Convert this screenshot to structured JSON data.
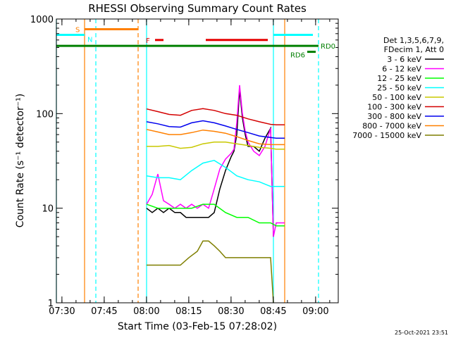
{
  "chart_data": {
    "type": "line",
    "title": "RHESSI Observing Summary Count Rates",
    "xlabel": "Start Time (03-Feb-15 07:28:02)",
    "ylabel": "Count Rate (s⁻¹ detector⁻¹)",
    "x_unit": "minutes since 07:28:02",
    "xlim": [
      0,
      100
    ],
    "ylim": [
      1,
      1000
    ],
    "yscale": "log",
    "grid": false,
    "legend_position": "right",
    "xticks": [
      {
        "value": 1.97,
        "label": "07:30"
      },
      {
        "value": 16.97,
        "label": "07:45"
      },
      {
        "value": 31.97,
        "label": "08:00"
      },
      {
        "value": 46.97,
        "label": "08:15"
      },
      {
        "value": 61.97,
        "label": "08:30"
      },
      {
        "value": 76.97,
        "label": "08:45"
      },
      {
        "value": 91.97,
        "label": "09:00"
      }
    ],
    "yticks": [
      {
        "value": 1,
        "label": "1"
      },
      {
        "value": 10,
        "label": "10"
      },
      {
        "value": 100,
        "label": "100"
      },
      {
        "value": 1000,
        "label": "1000"
      }
    ],
    "legend_header": [
      "Det 1,3,5,6,7,9,",
      "FDecim 1, Att 0"
    ],
    "series": [
      {
        "name": "3 - 6 keV",
        "color": "#000000",
        "x": [
          32,
          34,
          36,
          38,
          40,
          42,
          44,
          46,
          48,
          50,
          52,
          54,
          56,
          58,
          60,
          62,
          63,
          64,
          65,
          66,
          67,
          68,
          70,
          72,
          74,
          76,
          77
        ],
        "y": [
          10,
          9,
          10,
          9,
          10,
          9,
          9,
          8,
          8,
          8,
          8,
          8,
          9,
          16,
          25,
          35,
          40,
          60,
          180,
          90,
          60,
          45,
          45,
          40,
          55,
          70,
          5
        ]
      },
      {
        "name": "6 - 12 keV",
        "color": "#ff00ff",
        "x": [
          32,
          34,
          36,
          38,
          40,
          42,
          44,
          46,
          48,
          50,
          52,
          54,
          56,
          58,
          60,
          62,
          63,
          64,
          65,
          66,
          67,
          68,
          70,
          72,
          74,
          76,
          77,
          78,
          81
        ],
        "y": [
          11,
          14,
          23,
          12,
          11,
          10,
          11,
          10,
          11,
          10,
          11,
          10,
          16,
          26,
          33,
          38,
          42,
          80,
          200,
          100,
          65,
          50,
          40,
          36,
          45,
          70,
          5,
          7,
          7
        ]
      },
      {
        "name": "12 - 25 keV",
        "color": "#00ff00",
        "x": [
          32,
          36,
          40,
          44,
          48,
          52,
          56,
          60,
          64,
          68,
          72,
          76,
          78,
          81
        ],
        "y": [
          11,
          10,
          10,
          10,
          10,
          11,
          11,
          9,
          8,
          8,
          7,
          7,
          6.5,
          6.5
        ]
      },
      {
        "name": "25 - 50 keV",
        "color": "#00ffff",
        "x": [
          32,
          36,
          40,
          44,
          48,
          52,
          56,
          60,
          64,
          68,
          72,
          76,
          78,
          81
        ],
        "y": [
          22,
          21,
          21,
          20,
          25,
          30,
          32,
          27,
          22,
          20,
          19,
          17,
          17,
          17
        ]
      },
      {
        "name": "50 - 100 keV",
        "color": "#c8c800",
        "x": [
          32,
          36,
          40,
          44,
          48,
          52,
          56,
          60,
          64,
          68,
          72,
          76,
          78,
          81
        ],
        "y": [
          45,
          45,
          46,
          43,
          44,
          48,
          50,
          50,
          48,
          46,
          44,
          43,
          42,
          42
        ]
      },
      {
        "name": "100 - 300 keV",
        "color": "#d40000",
        "x": [
          32,
          36,
          40,
          44,
          48,
          52,
          56,
          60,
          64,
          68,
          72,
          76,
          78,
          81
        ],
        "y": [
          112,
          105,
          98,
          96,
          108,
          113,
          108,
          100,
          96,
          88,
          82,
          77,
          76,
          76
        ]
      },
      {
        "name": "300 - 800 keV",
        "color": "#0000ee",
        "x": [
          32,
          36,
          40,
          44,
          48,
          52,
          56,
          60,
          64,
          68,
          72,
          76,
          78,
          81
        ],
        "y": [
          82,
          78,
          73,
          72,
          80,
          84,
          80,
          74,
          68,
          63,
          58,
          56,
          55,
          55
        ]
      },
      {
        "name": "800 - 7000 keV",
        "color": "#ff8000",
        "x": [
          32,
          36,
          40,
          44,
          48,
          52,
          56,
          60,
          64,
          68,
          72,
          76,
          78,
          81
        ],
        "y": [
          68,
          64,
          60,
          60,
          63,
          67,
          65,
          62,
          57,
          52,
          48,
          47,
          47,
          47
        ]
      },
      {
        "name": "7000 - 15000 keV",
        "color": "#7f7f00",
        "x": [
          32,
          36,
          40,
          44,
          47,
          50,
          52,
          54,
          56,
          58,
          60,
          64,
          68,
          72,
          76,
          77
        ],
        "y": [
          2.5,
          2.5,
          2.5,
          2.5,
          3,
          3.5,
          4.5,
          4.5,
          4,
          3.5,
          3,
          3,
          3,
          3,
          3,
          1
        ]
      }
    ],
    "flags": [
      {
        "label": "S",
        "color": "#ff8000",
        "x": [
          10,
          29
        ],
        "y": 780
      },
      {
        "label": "N",
        "color": "#00ffff",
        "x": [
          0,
          10
        ],
        "y": 680
      },
      {
        "label": "F",
        "color": "#e60000",
        "x": [
          35,
          38
        ],
        "y": 600
      },
      {
        "label": "",
        "color": "#e60000",
        "x": [
          53,
          75
        ],
        "y": 600
      },
      {
        "label": "",
        "color": "#00ffff",
        "x": [
          77,
          91
        ],
        "y": 680
      },
      {
        "label": "RD0",
        "color": "#007f00",
        "x": [
          0,
          93
        ],
        "y": 520
      },
      {
        "label": "RD6",
        "color": "#007f00",
        "x": [
          89,
          92
        ],
        "y": 450
      }
    ],
    "vertical_markers": [
      {
        "x": 0,
        "color": "#00ffff",
        "style": "solid"
      },
      {
        "x": 10,
        "color": "#ff8000",
        "style": "solid"
      },
      {
        "x": 14,
        "color": "#00ffff",
        "style": "dashed"
      },
      {
        "x": 29,
        "color": "#ff8000",
        "style": "dashed"
      },
      {
        "x": 32,
        "color": "#00ffff",
        "style": "solid"
      },
      {
        "x": 77,
        "color": "#00ffff",
        "style": "solid"
      },
      {
        "x": 81,
        "color": "#ff8000",
        "style": "solid"
      },
      {
        "x": 93,
        "color": "#00ffff",
        "style": "dashed"
      }
    ],
    "footer": "25-Oct-2021 23:51"
  }
}
